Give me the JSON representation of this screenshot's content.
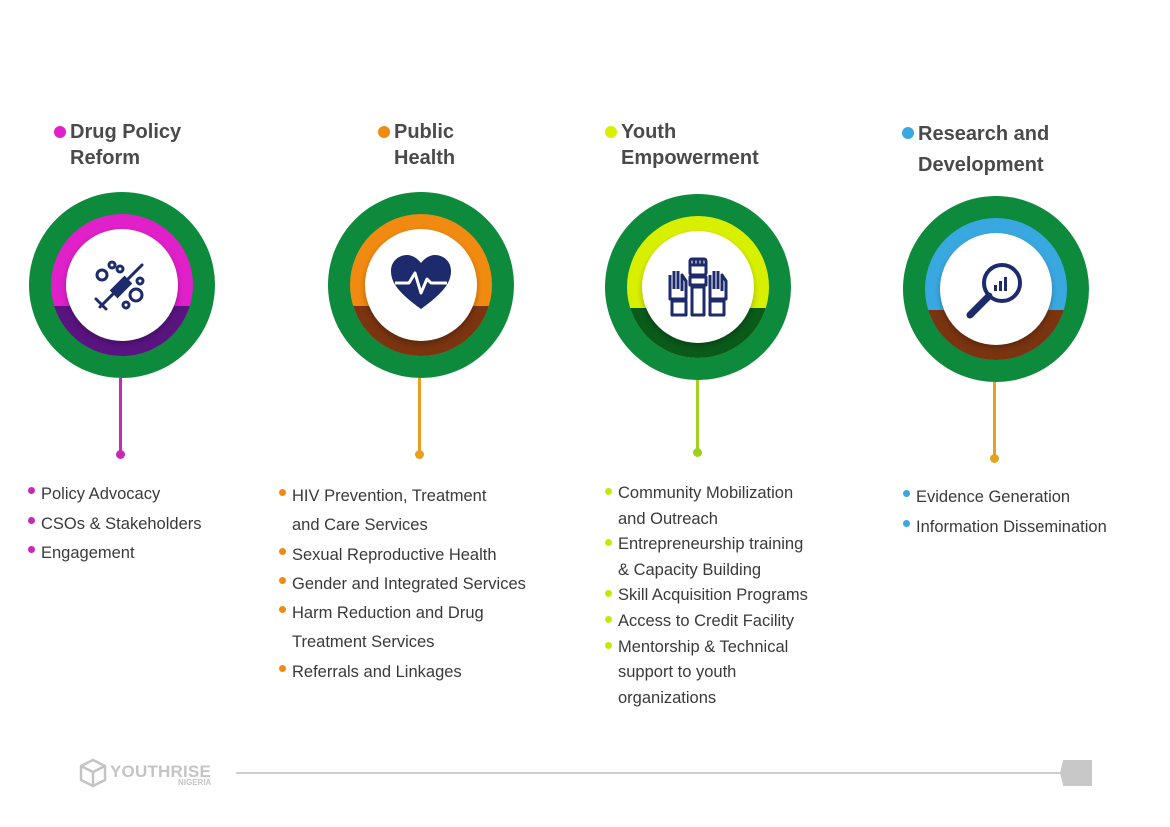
{
  "pillars": [
    {
      "title_line1": "Drug Policy",
      "title_line2": "Reform",
      "color": "#e020c8",
      "shade": "#5a1480",
      "stem": "#c828b8",
      "icon": "syringe-pills-icon",
      "items": [
        "Policy Advocacy",
        "CSOs & Stakeholders",
        "Engagement"
      ]
    },
    {
      "title_line1": "Public",
      "title_line2": "Health",
      "color": "#f08a10",
      "shade": "#7a3410",
      "stem": "#e8a020",
      "icon": "heartbeat-icon",
      "items": [
        "HIV Prevention, Treatment",
        "and Care Services",
        "Sexual Reproductive Health",
        "Gender and Integrated Services",
        "Harm Reduction and Drug",
        "Treatment Services",
        "Referrals and Linkages"
      ]
    },
    {
      "title_line1": "Youth",
      "title_line2": "Empowerment",
      "color": "#d8f000",
      "shade": "#0a5a1a",
      "stem": "#a0d020",
      "icon": "raised-hands-icon",
      "items": [
        "Community Mobilization",
        "and Outreach",
        "Entrepreneurship training",
        "& Capacity Building",
        "Skill Acquisition Programs",
        "Access to Credit Facility",
        "Mentorship & Technical",
        "support to youth",
        "organizations"
      ]
    },
    {
      "title_line1": "Research and",
      "title_line2": "Development",
      "color": "#3aa8e0",
      "shade": "#7a3410",
      "stem": "#e8a020",
      "icon": "magnifier-chart-icon",
      "items": [
        "Evidence Generation",
        "Information Dissemination"
      ]
    }
  ],
  "footer": {
    "logo_text": "YOUTHRISE",
    "logo_subtext": "NIGERIA"
  }
}
